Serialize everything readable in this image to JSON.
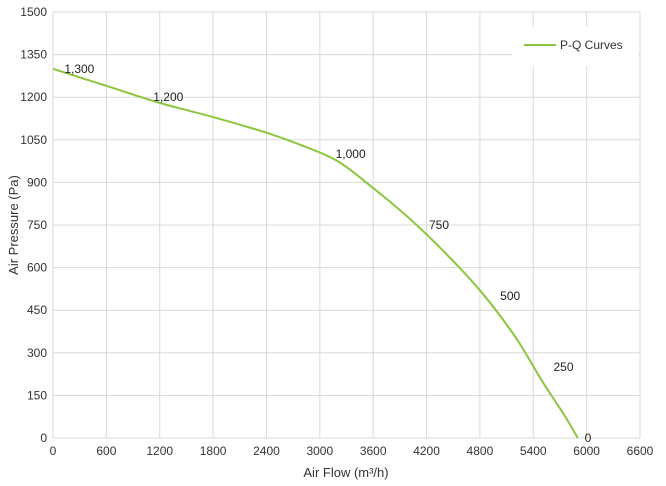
{
  "chart_data": {
    "type": "line",
    "xlabel": "Air Flow  (m³/h)",
    "ylabel": "Air Pressure  (Pa)",
    "xlim": [
      0,
      6600
    ],
    "ylim": [
      0,
      1500
    ],
    "x_ticks": [
      0,
      600,
      1200,
      1800,
      2400,
      3000,
      3600,
      4200,
      4800,
      5400,
      6000,
      6600
    ],
    "y_ticks": [
      0,
      150,
      300,
      450,
      600,
      750,
      900,
      1050,
      1200,
      1350,
      1500
    ],
    "grid": true,
    "legend_position": "top-right",
    "line_color": "#8cc63f",
    "series": [
      {
        "name": "P-Q Curves",
        "points": [
          [
            0,
            1300
          ],
          [
            600,
            1240
          ],
          [
            1200,
            1180
          ],
          [
            1800,
            1130
          ],
          [
            2400,
            1075
          ],
          [
            2800,
            1030
          ],
          [
            3200,
            975
          ],
          [
            3600,
            880
          ],
          [
            4000,
            775
          ],
          [
            4400,
            655
          ],
          [
            4800,
            520
          ],
          [
            5200,
            355
          ],
          [
            5500,
            200
          ],
          [
            5750,
            80
          ],
          [
            5900,
            0
          ]
        ]
      }
    ],
    "data_labels": [
      {
        "x": 150,
        "y": 1300,
        "text": "1,300"
      },
      {
        "x": 1150,
        "y": 1200,
        "text": "1,200"
      },
      {
        "x": 3200,
        "y": 1000,
        "text": "1,000"
      },
      {
        "x": 4250,
        "y": 750,
        "text": "750"
      },
      {
        "x": 5050,
        "y": 500,
        "text": "500"
      },
      {
        "x": 5650,
        "y": 250,
        "text": "250"
      },
      {
        "x": 6000,
        "y": 0,
        "text": "0"
      }
    ]
  }
}
